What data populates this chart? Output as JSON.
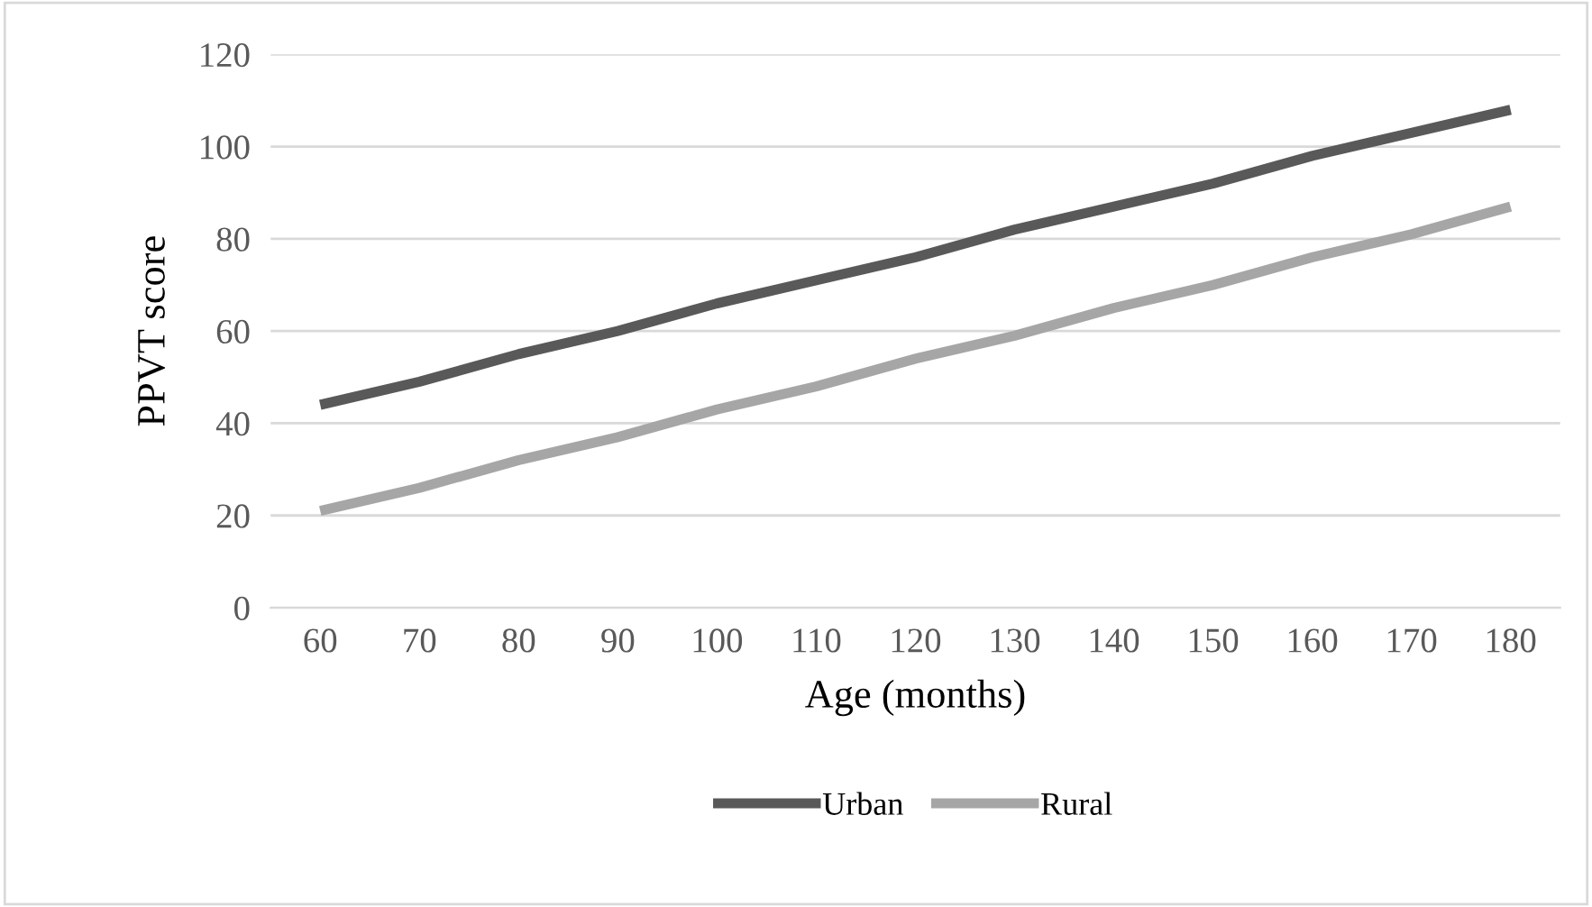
{
  "chart_data": {
    "type": "line",
    "xlabel": "Age (months)",
    "ylabel": "PPVT score",
    "categories": [
      "60",
      "70",
      "80",
      "90",
      "100",
      "110",
      "120",
      "130",
      "140",
      "150",
      "160",
      "170",
      "180"
    ],
    "series": [
      {
        "name": "Urban",
        "color": "#595959",
        "values": [
          44,
          49,
          55,
          60,
          66,
          71,
          76,
          82,
          87,
          92,
          98,
          103,
          108
        ]
      },
      {
        "name": "Rural",
        "color": "#a6a6a6",
        "values": [
          21,
          26,
          32,
          37,
          43,
          48,
          54,
          59,
          65,
          70,
          76,
          81,
          87
        ]
      }
    ],
    "ylim": [
      0,
      120
    ],
    "yticks": [
      0,
      20,
      40,
      60,
      80,
      100,
      120
    ],
    "grid": "y",
    "legend": "bottom",
    "marker": "none",
    "line_style": "solid"
  }
}
